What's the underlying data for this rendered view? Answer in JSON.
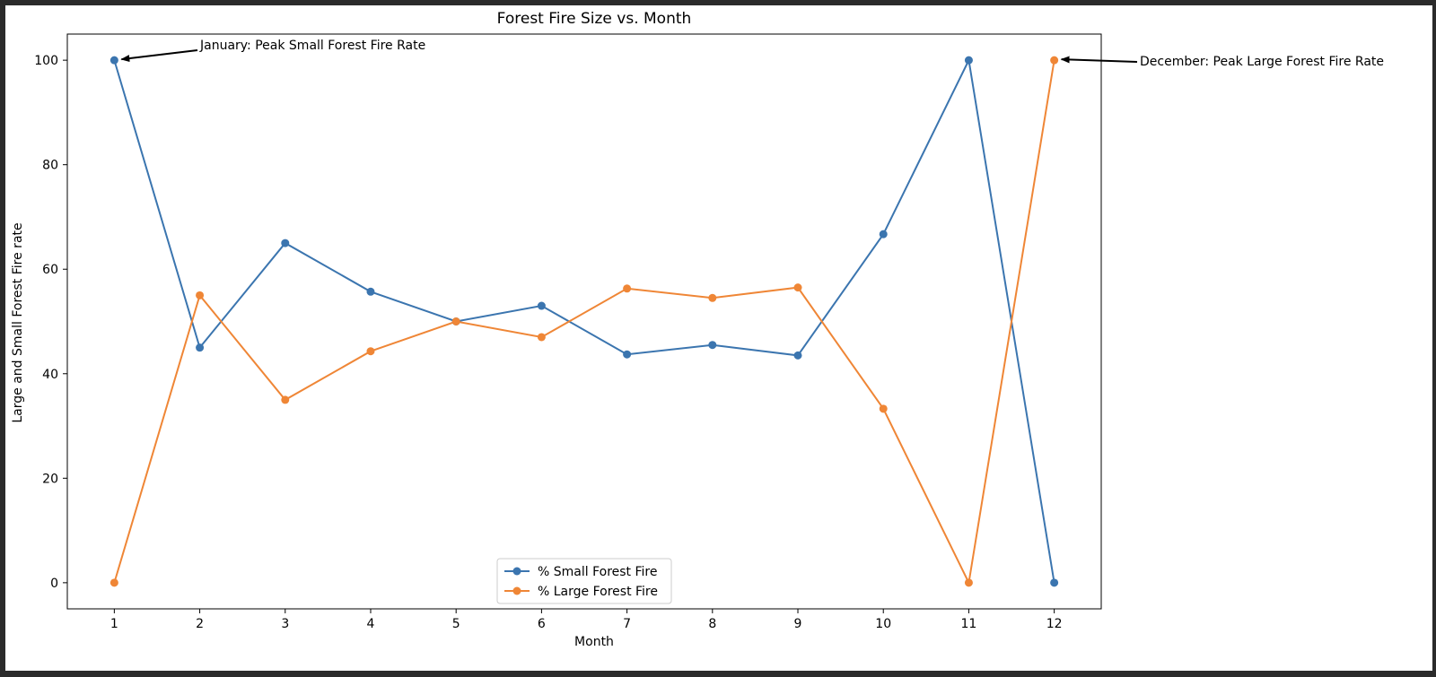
{
  "chart_data": {
    "type": "line",
    "title": "Forest Fire Size vs. Month",
    "xlabel": "Month",
    "ylabel": "Large and Small Forest Fire rate",
    "x": [
      1,
      2,
      3,
      4,
      5,
      6,
      7,
      8,
      9,
      10,
      11,
      12
    ],
    "xlim": [
      0.45,
      12.55
    ],
    "ylim": [
      -5,
      105
    ],
    "xticks": [
      "1",
      "2",
      "3",
      "4",
      "5",
      "6",
      "7",
      "8",
      "9",
      "10",
      "11",
      "12"
    ],
    "yticks": [
      0,
      20,
      40,
      60,
      80,
      100
    ],
    "grid": false,
    "legend_position": "bottom-center",
    "series": [
      {
        "name": "% Small Forest Fire",
        "color": "#3b75af",
        "values": [
          100,
          45,
          65,
          55.7,
          50,
          53,
          43.7,
          45.5,
          43.5,
          66.7,
          100,
          0
        ]
      },
      {
        "name": "% Large Forest Fire",
        "color": "#ef8636",
        "values": [
          0,
          55,
          35,
          44.3,
          50,
          47,
          56.3,
          54.5,
          56.5,
          33.3,
          0,
          100
        ]
      }
    ],
    "annotations": [
      {
        "text": "January: Peak Small Forest Fire Rate",
        "x": 1,
        "y": 100,
        "series": 0
      },
      {
        "text": "December: Peak Large Forest Fire Rate",
        "x": 12,
        "y": 100,
        "series": 1
      }
    ]
  }
}
